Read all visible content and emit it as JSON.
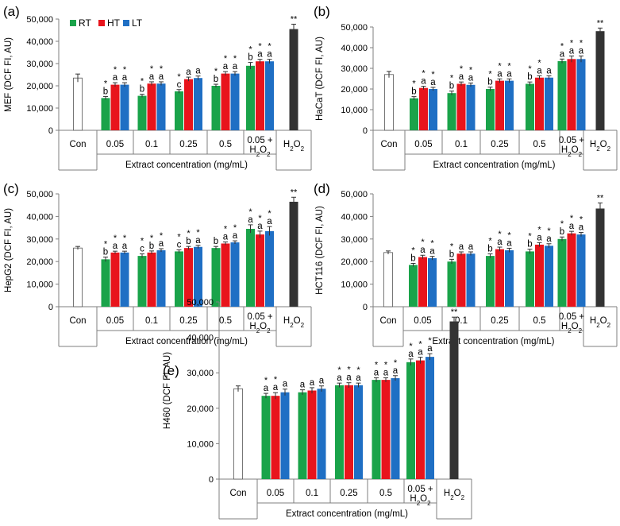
{
  "colors": {
    "RT": "#1aa34a",
    "HT": "#e8141c",
    "LT": "#1f6fc4",
    "con": "#ffffff",
    "h2o2": "#333333",
    "axis": "#7f7f7f"
  },
  "legend": [
    "RT",
    "HT",
    "LT"
  ],
  "shared": {
    "categories": [
      "Con",
      "0.05",
      "0.1",
      "0.25",
      "0.5",
      "0.05 +|H2O2",
      "H2O2"
    ],
    "xlabel": "Extract concentration (mg/mL)"
  },
  "chart_data": [
    {
      "type": "bar",
      "panel": "(a)",
      "ylabel": "MEF (DCF FI, AU)",
      "ylim": [
        0,
        50000
      ],
      "yticks": [
        "0",
        "10,000",
        "20,000",
        "30,000",
        "40,000",
        "50,000"
      ],
      "con": {
        "value": 23500,
        "err": 1800,
        "label": ""
      },
      "h2o2": {
        "value": 45500,
        "err": 2200,
        "label": "**"
      },
      "series": [
        {
          "name": "RT",
          "values": [
            14500,
            15500,
            17500,
            20000,
            29000
          ],
          "errors": [
            700,
            700,
            800,
            700,
            1500
          ],
          "letters": [
            "b",
            "b",
            "c",
            "b",
            "b"
          ],
          "stars": [
            true,
            true,
            true,
            true,
            true
          ]
        },
        {
          "name": "HT",
          "values": [
            20500,
            21000,
            23000,
            25500,
            31000
          ],
          "errors": [
            900,
            800,
            900,
            900,
            900
          ],
          "letters": [
            "a",
            "a",
            "a",
            "a",
            "a"
          ],
          "stars": [
            true,
            true,
            false,
            true,
            true
          ]
        },
        {
          "name": "LT",
          "values": [
            20500,
            21000,
            23500,
            25500,
            31000
          ],
          "errors": [
            900,
            800,
            900,
            900,
            900
          ],
          "letters": [
            "a",
            "a",
            "a",
            "a",
            "a"
          ],
          "stars": [
            true,
            true,
            false,
            true,
            true
          ]
        }
      ]
    },
    {
      "type": "bar",
      "panel": "(b)",
      "ylabel": "HaCaT (DCF FI, AU)",
      "ylim": [
        0,
        50000
      ],
      "yticks": [
        "0",
        "10,000",
        "20,000",
        "30,000",
        "40,000",
        "50,000"
      ],
      "con": {
        "value": 27000,
        "err": 1500,
        "label": ""
      },
      "h2o2": {
        "value": 48000,
        "err": 1500,
        "label": "**"
      },
      "series": [
        {
          "name": "RT",
          "values": [
            15500,
            18000,
            20000,
            22500,
            33500
          ],
          "errors": [
            800,
            1000,
            900,
            900,
            1000
          ],
          "letters": [
            "b",
            "b",
            "b",
            "b",
            "a"
          ],
          "stars": [
            true,
            true,
            true,
            true,
            true
          ]
        },
        {
          "name": "HT",
          "values": [
            20500,
            22500,
            24000,
            25500,
            34500
          ],
          "errors": [
            800,
            900,
            900,
            900,
            1500
          ],
          "letters": [
            "a",
            "a",
            "a",
            "a",
            "a"
          ],
          "stars": [
            true,
            true,
            true,
            true,
            true
          ]
        },
        {
          "name": "LT",
          "values": [
            20000,
            22000,
            24000,
            25500,
            34500
          ],
          "errors": [
            800,
            900,
            900,
            900,
            1500
          ],
          "letters": [
            "a",
            "a",
            "a",
            "a",
            "a"
          ],
          "stars": [
            true,
            true,
            true,
            false,
            true
          ]
        }
      ]
    },
    {
      "type": "bar",
      "panel": "(c)",
      "ylabel": "HepG2 (DCF FI, AU)",
      "ylim": [
        0,
        50000
      ],
      "yticks": [
        "0",
        "10,000",
        "20,000",
        "30,000",
        "40,000",
        "50,000"
      ],
      "con": {
        "value": 26000,
        "err": 700,
        "label": ""
      },
      "h2o2": {
        "value": 46500,
        "err": 2000,
        "label": "**"
      },
      "series": [
        {
          "name": "RT",
          "values": [
            21000,
            22500,
            24500,
            26000,
            34500
          ],
          "errors": [
            1000,
            900,
            700,
            700,
            1800
          ],
          "letters": [
            "b",
            "c",
            "c",
            "b",
            "a"
          ],
          "stars": [
            true,
            true,
            true,
            false,
            true
          ]
        },
        {
          "name": "HT",
          "values": [
            24000,
            24000,
            26000,
            28000,
            32000
          ],
          "errors": [
            600,
            700,
            700,
            700,
            1500
          ],
          "letters": [
            "a",
            "b",
            "b",
            "a",
            "a"
          ],
          "stars": [
            true,
            true,
            true,
            true,
            true
          ]
        },
        {
          "name": "LT",
          "values": [
            24000,
            25000,
            26500,
            28500,
            33500
          ],
          "errors": [
            600,
            700,
            700,
            700,
            2000
          ],
          "letters": [
            "a",
            "a",
            "a",
            "a",
            "a"
          ],
          "stars": [
            true,
            true,
            true,
            true,
            true
          ]
        }
      ]
    },
    {
      "type": "bar",
      "panel": "(d)",
      "ylabel": "HCT116 (DCF FI, AU)",
      "ylim": [
        0,
        50000
      ],
      "yticks": [
        "0",
        "10,000",
        "20,000",
        "30,000",
        "40,000",
        "50,000"
      ],
      "con": {
        "value": 24000,
        "err": 700,
        "label": ""
      },
      "h2o2": {
        "value": 43500,
        "err": 2500,
        "label": "**"
      },
      "series": [
        {
          "name": "RT",
          "values": [
            18500,
            20000,
            22500,
            24500,
            30000
          ],
          "errors": [
            700,
            1000,
            900,
            1000,
            900
          ],
          "letters": [
            "b",
            "b",
            "b",
            "b",
            "b"
          ],
          "stars": [
            true,
            true,
            true,
            true,
            true
          ]
        },
        {
          "name": "HT",
          "values": [
            22000,
            23500,
            25500,
            27500,
            32500
          ],
          "errors": [
            800,
            800,
            900,
            900,
            900
          ],
          "letters": [
            "a",
            "a",
            "a",
            "a",
            "a"
          ],
          "stars": [
            true,
            false,
            true,
            true,
            true
          ]
        },
        {
          "name": "LT",
          "values": [
            21500,
            23500,
            25000,
            27000,
            32000
          ],
          "errors": [
            800,
            800,
            900,
            900,
            900
          ],
          "letters": [
            "a",
            "a",
            "a",
            "a",
            "a"
          ],
          "stars": [
            true,
            false,
            true,
            true,
            true
          ]
        }
      ]
    },
    {
      "type": "bar",
      "panel": "(e)",
      "ylabel": "H460 (DCF FI, AU)",
      "ylim": [
        0,
        50000
      ],
      "yticks": [
        "0",
        "10,000",
        "20,000",
        "30,000",
        "40,000",
        "50,000"
      ],
      "con": {
        "value": 25500,
        "err": 800,
        "label": ""
      },
      "h2o2": {
        "value": 44500,
        "err": 1200,
        "label": "**"
      },
      "series": [
        {
          "name": "RT",
          "values": [
            23500,
            24500,
            26500,
            28000,
            33000
          ],
          "errors": [
            700,
            700,
            600,
            600,
            900
          ],
          "letters": [
            "a",
            "a",
            "a",
            "a",
            "a"
          ],
          "stars": [
            true,
            false,
            true,
            true,
            true
          ]
        },
        {
          "name": "HT",
          "values": [
            23500,
            25000,
            26500,
            28000,
            33500
          ],
          "errors": [
            900,
            800,
            700,
            600,
            900
          ],
          "letters": [
            "a",
            "a",
            "a",
            "a",
            "a"
          ],
          "stars": [
            true,
            false,
            true,
            true,
            true
          ]
        },
        {
          "name": "LT",
          "values": [
            24500,
            25500,
            26500,
            28500,
            34500
          ],
          "errors": [
            900,
            800,
            600,
            700,
            900
          ],
          "letters": [
            "a",
            "a",
            "a",
            "a",
            "a"
          ],
          "stars": [
            false,
            false,
            true,
            true,
            true
          ]
        }
      ]
    }
  ]
}
